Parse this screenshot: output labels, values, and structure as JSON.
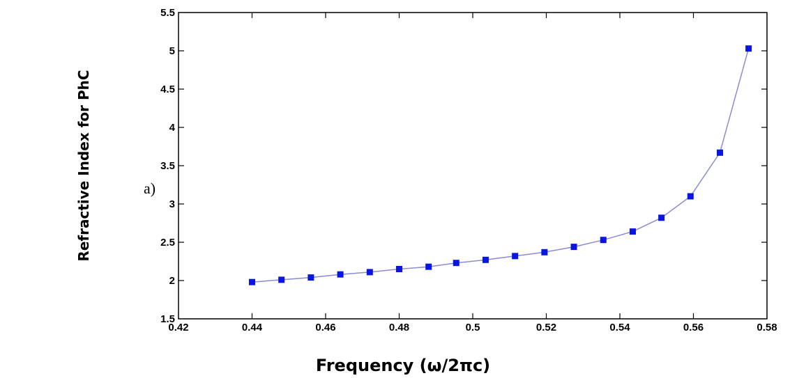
{
  "panel_label": "a)",
  "chart_data": {
    "type": "line",
    "title": "",
    "xlabel": "Frequency (ω/2πc)",
    "ylabel": "Refractive Index for PhC",
    "xlim": [
      0.42,
      0.58
    ],
    "ylim": [
      1.5,
      5.5
    ],
    "xticks": [
      "0.42",
      "0.44",
      "0.46",
      "0.48",
      "0.5",
      "0.52",
      "0.54",
      "0.56",
      "0.58"
    ],
    "yticks": [
      "1.5",
      "2",
      "2.5",
      "3",
      "3.5",
      "4",
      "4.5",
      "5",
      "5.5"
    ],
    "grid": false,
    "legend": "none",
    "series": [
      {
        "x": [
          0.44,
          0.448,
          0.456,
          0.464,
          0.472,
          0.48,
          0.488,
          0.4955,
          0.5035,
          0.5115,
          0.5195,
          0.5275,
          0.5355,
          0.5435,
          0.5513,
          0.5592,
          0.5672,
          0.575
        ],
        "values": [
          1.98,
          2.01,
          2.04,
          2.08,
          2.11,
          2.15,
          2.18,
          2.23,
          2.27,
          2.32,
          2.37,
          2.44,
          2.53,
          2.64,
          2.82,
          3.1,
          3.67,
          5.03
        ],
        "line_color": "#8a8ad8",
        "marker_color": "#0a16e0",
        "marker": "square"
      }
    ]
  }
}
